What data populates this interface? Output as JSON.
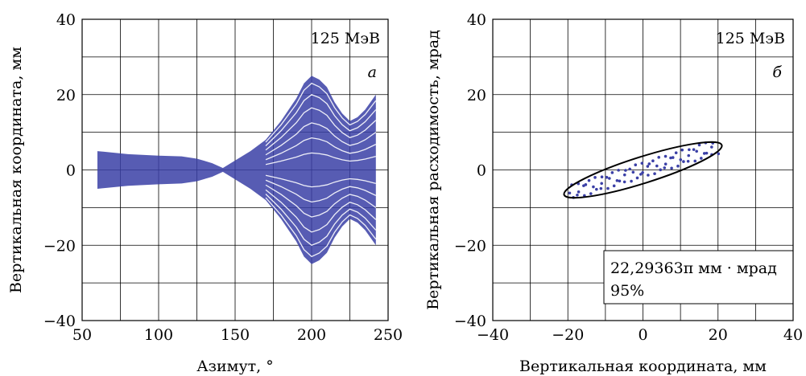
{
  "chart_data": [
    {
      "type": "scatter",
      "panel": "а",
      "energy_label": "125 МэВ",
      "xlabel": "Азимут, °",
      "ylabel": "Вертикальная координата, мм",
      "xlim": [
        50,
        250
      ],
      "ylim": [
        -40,
        40
      ],
      "xticks": [
        "50",
        "100",
        "150",
        "200",
        "250"
      ],
      "yticks": [
        "40",
        "20",
        "0",
        "−20",
        "−40"
      ],
      "xtick_values": [
        50,
        100,
        150,
        200,
        250
      ],
      "ytick_values": [
        40,
        20,
        0,
        -20,
        -40
      ],
      "xgrid": [
        50,
        75,
        100,
        125,
        150,
        175,
        200,
        225,
        250
      ],
      "ygrid": [
        -40,
        -30,
        -20,
        -10,
        0,
        10,
        20,
        30,
        40
      ],
      "grid": true,
      "color": "#3a3fa6",
      "envelope": {
        "azimuth": [
          60,
          80,
          100,
          115,
          125,
          135,
          142,
          150,
          160,
          170,
          180,
          190,
          195,
          200,
          205,
          210,
          215,
          220,
          225,
          230,
          235,
          242
        ],
        "upper": [
          5,
          4.2,
          3.8,
          3.6,
          3,
          1.8,
          0.5,
          2.5,
          5,
          8,
          13,
          19,
          23,
          25,
          24,
          22,
          18,
          15,
          13,
          14,
          16,
          20
        ],
        "lower": [
          -5,
          -4.2,
          -3.8,
          -3.6,
          -3,
          -1.8,
          -0.5,
          -2.5,
          -5,
          -8,
          -13,
          -19,
          -23,
          -25,
          -24,
          -22,
          -18,
          -15,
          -13,
          -14,
          -16,
          -20
        ]
      }
    },
    {
      "type": "scatter",
      "panel": "б",
      "energy_label": "125 МэВ",
      "xlabel": "Вертикальная координата, мм",
      "ylabel": "Вертикальная расходимость, мрад",
      "xlim": [
        -40,
        40
      ],
      "ylim": [
        -40,
        40
      ],
      "xticks": [
        "−40",
        "−20",
        "0",
        "20",
        "40"
      ],
      "yticks": [
        "40",
        "20",
        "0",
        "−20",
        "−40"
      ],
      "xtick_values": [
        -40,
        -20,
        0,
        20,
        40
      ],
      "ytick_values": [
        40,
        20,
        0,
        -20,
        -40
      ],
      "xgrid": [
        -40,
        -30,
        -20,
        -10,
        0,
        10,
        20,
        30,
        40
      ],
      "ygrid": [
        -40,
        -30,
        -20,
        -10,
        0,
        10,
        20,
        30,
        40
      ],
      "grid": true,
      "color": "#3a3fa6",
      "ellipse": {
        "center": [
          0,
          0
        ],
        "semi_major_end": [
          21,
          6.6
        ],
        "semi_minor_width": 1.0
      },
      "emittance_text": "22,29363π мм · мрад",
      "percent_text": "95%"
    }
  ]
}
